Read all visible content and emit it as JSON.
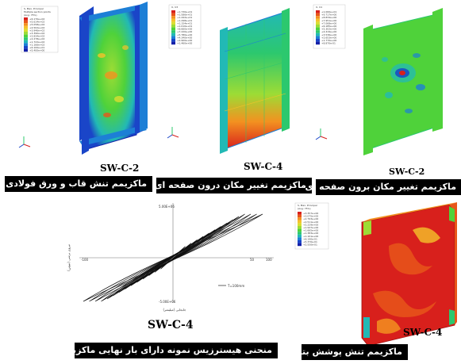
{
  "figures": [
    {
      "specimen": "SW-C-2",
      "caption": "ماکزیمم تنش قاب و ورق فولادی",
      "legend": {
        "title": [
          "S, Max. Principal",
          "Multiple section points",
          "(Avg: 75%)"
        ],
        "values": [
          "+6.170e+02",
          "+5.614e+02",
          "+5.058e+02",
          "+4.502e+02",
          "+3.946e+02",
          "+3.390e+02",
          "+2.834e+02",
          "+2.278e+02",
          "+1.722e+02",
          "+1.166e+02",
          "+6.100e+01",
          "+5.400e+00"
        ]
      }
    },
    {
      "specimen": "SW-C-4",
      "caption": "ماکزیمم تغییر مکان درون صفحه ای",
      "legend": {
        "title": [
          "U, U3"
        ],
        "values": [
          "+1.730e+01",
          "+1.586e+01",
          "+1.442e+01",
          "+1.298e+01",
          "+1.154e+01",
          "+1.010e+01",
          "+8.660e+00",
          "+7.220e+00",
          "+5.780e+00",
          "+4.340e+00",
          "+2.900e+00",
          "+1.460e+00"
        ]
      }
    },
    {
      "specimen": "SW-C-2",
      "caption": "ماکزیمم تغییر مکان برون صفحه ای",
      "legend": {
        "title": [
          "U, U1"
        ],
        "values": [
          "+1.060e+01",
          "+9.717e+00",
          "+8.834e+00",
          "+7.951e+00",
          "+7.068e+00",
          "+6.185e+00",
          "+5.302e+00",
          "+4.419e+00",
          "+3.536e+00",
          "+2.653e+00",
          "+1.770e+00",
          "+8.870e-01"
        ]
      }
    },
    {
      "specimen": "SW-C-4",
      "caption": "منحنی هیسترزیس نمونه دارای بار نهایی ماکزیمم",
      "chart": {
        "y_top": "5.00E+06",
        "y_bottom": "-5.00E+06",
        "x_left": "-50",
        "x_right": "50",
        "x_far_right": "100",
        "x_far_left": "-100",
        "ylabel": "نیروی برشی (نیوتن)",
        "xlabel": "جابجایی (میلیمتر)",
        "legend": "T=100mm"
      }
    },
    {
      "specimen": "SW-C-4",
      "caption": "ماکزیمم تنش پوشش بتنی",
      "legend": {
        "title": [
          "S, Max. Principal",
          "(Avg: 75%)"
        ],
        "values": [
          "+3.357e+00",
          "+3.075e+00",
          "+2.793e+00",
          "+2.511e+00",
          "+2.229e+00",
          "+1.947e+00",
          "+1.665e+00",
          "+1.383e+00",
          "+1.101e+00",
          "+8.190e-01",
          "+5.370e-01",
          "+2.550e-01"
        ]
      }
    }
  ],
  "colors": {
    "contour": [
      "#d8201c",
      "#e8561a",
      "#f39120",
      "#f5c22a",
      "#d9dd32",
      "#9ddc35",
      "#4fd23a",
      "#2cc86e",
      "#22b9b5",
      "#1d7fd6",
      "#1a45c8",
      "#1420a8"
    ],
    "caption_bg": "#000000",
    "caption_text": "#ffffff"
  }
}
